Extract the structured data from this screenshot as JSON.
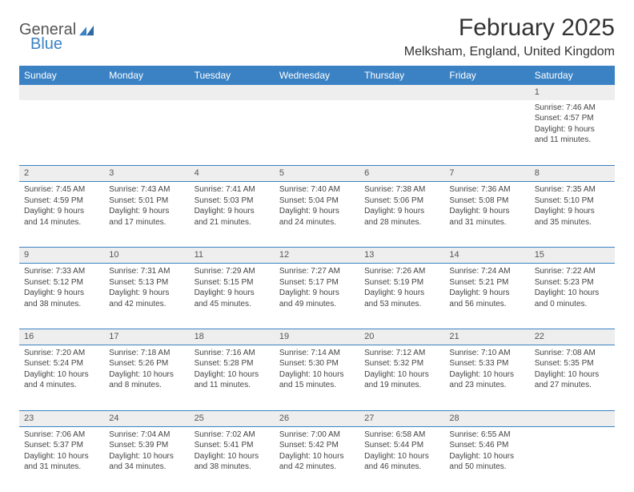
{
  "branding": {
    "logo_part1": "General",
    "logo_part2": "Blue",
    "logo_color_primary": "#3b82c4",
    "logo_color_text": "#555555"
  },
  "header": {
    "title": "February 2025",
    "location": "Melksham, England, United Kingdom"
  },
  "style": {
    "header_bg": "#3b82c4",
    "header_text": "#ffffff",
    "daynum_bg": "#eeeeee",
    "cell_border": "#3b82c4",
    "body_text": "#444444",
    "page_bg": "#ffffff",
    "font_family": "Arial",
    "title_fontsize": 30,
    "location_fontsize": 16,
    "dayheader_fontsize": 12,
    "daynum_fontsize": 11,
    "cell_fontsize": 10
  },
  "calendar": {
    "day_headers": [
      "Sunday",
      "Monday",
      "Tuesday",
      "Wednesday",
      "Thursday",
      "Friday",
      "Saturday"
    ],
    "weeks": [
      [
        null,
        null,
        null,
        null,
        null,
        null,
        {
          "n": "1",
          "sunrise": "Sunrise: 7:46 AM",
          "sunset": "Sunset: 4:57 PM",
          "daylight1": "Daylight: 9 hours",
          "daylight2": "and 11 minutes."
        }
      ],
      [
        {
          "n": "2",
          "sunrise": "Sunrise: 7:45 AM",
          "sunset": "Sunset: 4:59 PM",
          "daylight1": "Daylight: 9 hours",
          "daylight2": "and 14 minutes."
        },
        {
          "n": "3",
          "sunrise": "Sunrise: 7:43 AM",
          "sunset": "Sunset: 5:01 PM",
          "daylight1": "Daylight: 9 hours",
          "daylight2": "and 17 minutes."
        },
        {
          "n": "4",
          "sunrise": "Sunrise: 7:41 AM",
          "sunset": "Sunset: 5:03 PM",
          "daylight1": "Daylight: 9 hours",
          "daylight2": "and 21 minutes."
        },
        {
          "n": "5",
          "sunrise": "Sunrise: 7:40 AM",
          "sunset": "Sunset: 5:04 PM",
          "daylight1": "Daylight: 9 hours",
          "daylight2": "and 24 minutes."
        },
        {
          "n": "6",
          "sunrise": "Sunrise: 7:38 AM",
          "sunset": "Sunset: 5:06 PM",
          "daylight1": "Daylight: 9 hours",
          "daylight2": "and 28 minutes."
        },
        {
          "n": "7",
          "sunrise": "Sunrise: 7:36 AM",
          "sunset": "Sunset: 5:08 PM",
          "daylight1": "Daylight: 9 hours",
          "daylight2": "and 31 minutes."
        },
        {
          "n": "8",
          "sunrise": "Sunrise: 7:35 AM",
          "sunset": "Sunset: 5:10 PM",
          "daylight1": "Daylight: 9 hours",
          "daylight2": "and 35 minutes."
        }
      ],
      [
        {
          "n": "9",
          "sunrise": "Sunrise: 7:33 AM",
          "sunset": "Sunset: 5:12 PM",
          "daylight1": "Daylight: 9 hours",
          "daylight2": "and 38 minutes."
        },
        {
          "n": "10",
          "sunrise": "Sunrise: 7:31 AM",
          "sunset": "Sunset: 5:13 PM",
          "daylight1": "Daylight: 9 hours",
          "daylight2": "and 42 minutes."
        },
        {
          "n": "11",
          "sunrise": "Sunrise: 7:29 AM",
          "sunset": "Sunset: 5:15 PM",
          "daylight1": "Daylight: 9 hours",
          "daylight2": "and 45 minutes."
        },
        {
          "n": "12",
          "sunrise": "Sunrise: 7:27 AM",
          "sunset": "Sunset: 5:17 PM",
          "daylight1": "Daylight: 9 hours",
          "daylight2": "and 49 minutes."
        },
        {
          "n": "13",
          "sunrise": "Sunrise: 7:26 AM",
          "sunset": "Sunset: 5:19 PM",
          "daylight1": "Daylight: 9 hours",
          "daylight2": "and 53 minutes."
        },
        {
          "n": "14",
          "sunrise": "Sunrise: 7:24 AM",
          "sunset": "Sunset: 5:21 PM",
          "daylight1": "Daylight: 9 hours",
          "daylight2": "and 56 minutes."
        },
        {
          "n": "15",
          "sunrise": "Sunrise: 7:22 AM",
          "sunset": "Sunset: 5:23 PM",
          "daylight1": "Daylight: 10 hours",
          "daylight2": "and 0 minutes."
        }
      ],
      [
        {
          "n": "16",
          "sunrise": "Sunrise: 7:20 AM",
          "sunset": "Sunset: 5:24 PM",
          "daylight1": "Daylight: 10 hours",
          "daylight2": "and 4 minutes."
        },
        {
          "n": "17",
          "sunrise": "Sunrise: 7:18 AM",
          "sunset": "Sunset: 5:26 PM",
          "daylight1": "Daylight: 10 hours",
          "daylight2": "and 8 minutes."
        },
        {
          "n": "18",
          "sunrise": "Sunrise: 7:16 AM",
          "sunset": "Sunset: 5:28 PM",
          "daylight1": "Daylight: 10 hours",
          "daylight2": "and 11 minutes."
        },
        {
          "n": "19",
          "sunrise": "Sunrise: 7:14 AM",
          "sunset": "Sunset: 5:30 PM",
          "daylight1": "Daylight: 10 hours",
          "daylight2": "and 15 minutes."
        },
        {
          "n": "20",
          "sunrise": "Sunrise: 7:12 AM",
          "sunset": "Sunset: 5:32 PM",
          "daylight1": "Daylight: 10 hours",
          "daylight2": "and 19 minutes."
        },
        {
          "n": "21",
          "sunrise": "Sunrise: 7:10 AM",
          "sunset": "Sunset: 5:33 PM",
          "daylight1": "Daylight: 10 hours",
          "daylight2": "and 23 minutes."
        },
        {
          "n": "22",
          "sunrise": "Sunrise: 7:08 AM",
          "sunset": "Sunset: 5:35 PM",
          "daylight1": "Daylight: 10 hours",
          "daylight2": "and 27 minutes."
        }
      ],
      [
        {
          "n": "23",
          "sunrise": "Sunrise: 7:06 AM",
          "sunset": "Sunset: 5:37 PM",
          "daylight1": "Daylight: 10 hours",
          "daylight2": "and 31 minutes."
        },
        {
          "n": "24",
          "sunrise": "Sunrise: 7:04 AM",
          "sunset": "Sunset: 5:39 PM",
          "daylight1": "Daylight: 10 hours",
          "daylight2": "and 34 minutes."
        },
        {
          "n": "25",
          "sunrise": "Sunrise: 7:02 AM",
          "sunset": "Sunset: 5:41 PM",
          "daylight1": "Daylight: 10 hours",
          "daylight2": "and 38 minutes."
        },
        {
          "n": "26",
          "sunrise": "Sunrise: 7:00 AM",
          "sunset": "Sunset: 5:42 PM",
          "daylight1": "Daylight: 10 hours",
          "daylight2": "and 42 minutes."
        },
        {
          "n": "27",
          "sunrise": "Sunrise: 6:58 AM",
          "sunset": "Sunset: 5:44 PM",
          "daylight1": "Daylight: 10 hours",
          "daylight2": "and 46 minutes."
        },
        {
          "n": "28",
          "sunrise": "Sunrise: 6:55 AM",
          "sunset": "Sunset: 5:46 PM",
          "daylight1": "Daylight: 10 hours",
          "daylight2": "and 50 minutes."
        },
        null
      ]
    ]
  }
}
